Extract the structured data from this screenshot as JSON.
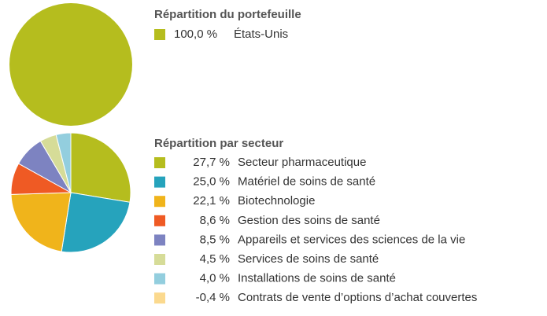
{
  "chart_data": [
    {
      "type": "pie",
      "title": "Répartition du portefeuille",
      "categories": [
        "États-Unis"
      ],
      "values": [
        100.0
      ],
      "value_labels": [
        "100,0 %"
      ],
      "colors": [
        "#b5bd1e"
      ]
    },
    {
      "type": "pie",
      "title": "Répartition par secteur",
      "categories": [
        "Secteur pharmaceutique",
        "Matériel de soins de santé",
        "Biotechnologie",
        "Gestion des soins de santé",
        "Appareils et services des sciences de la vie",
        "Services de soins de santé",
        "Installations de soins de santé",
        "Contrats de vente d’options d’achat couvertes"
      ],
      "values": [
        27.7,
        25.0,
        22.1,
        8.6,
        8.5,
        4.5,
        4.0,
        -0.4
      ],
      "value_labels": [
        "27,7 %",
        "25,0 %",
        "22,1 %",
        "8,6 %",
        "8,5 %",
        "4,5 %",
        "4,0 %",
        "-0,4 %"
      ],
      "colors": [
        "#b5bd1e",
        "#26a3bc",
        "#f0b41b",
        "#ef5a24",
        "#7d83c1",
        "#d6dc98",
        "#93cede",
        "#fbd98e"
      ]
    }
  ]
}
